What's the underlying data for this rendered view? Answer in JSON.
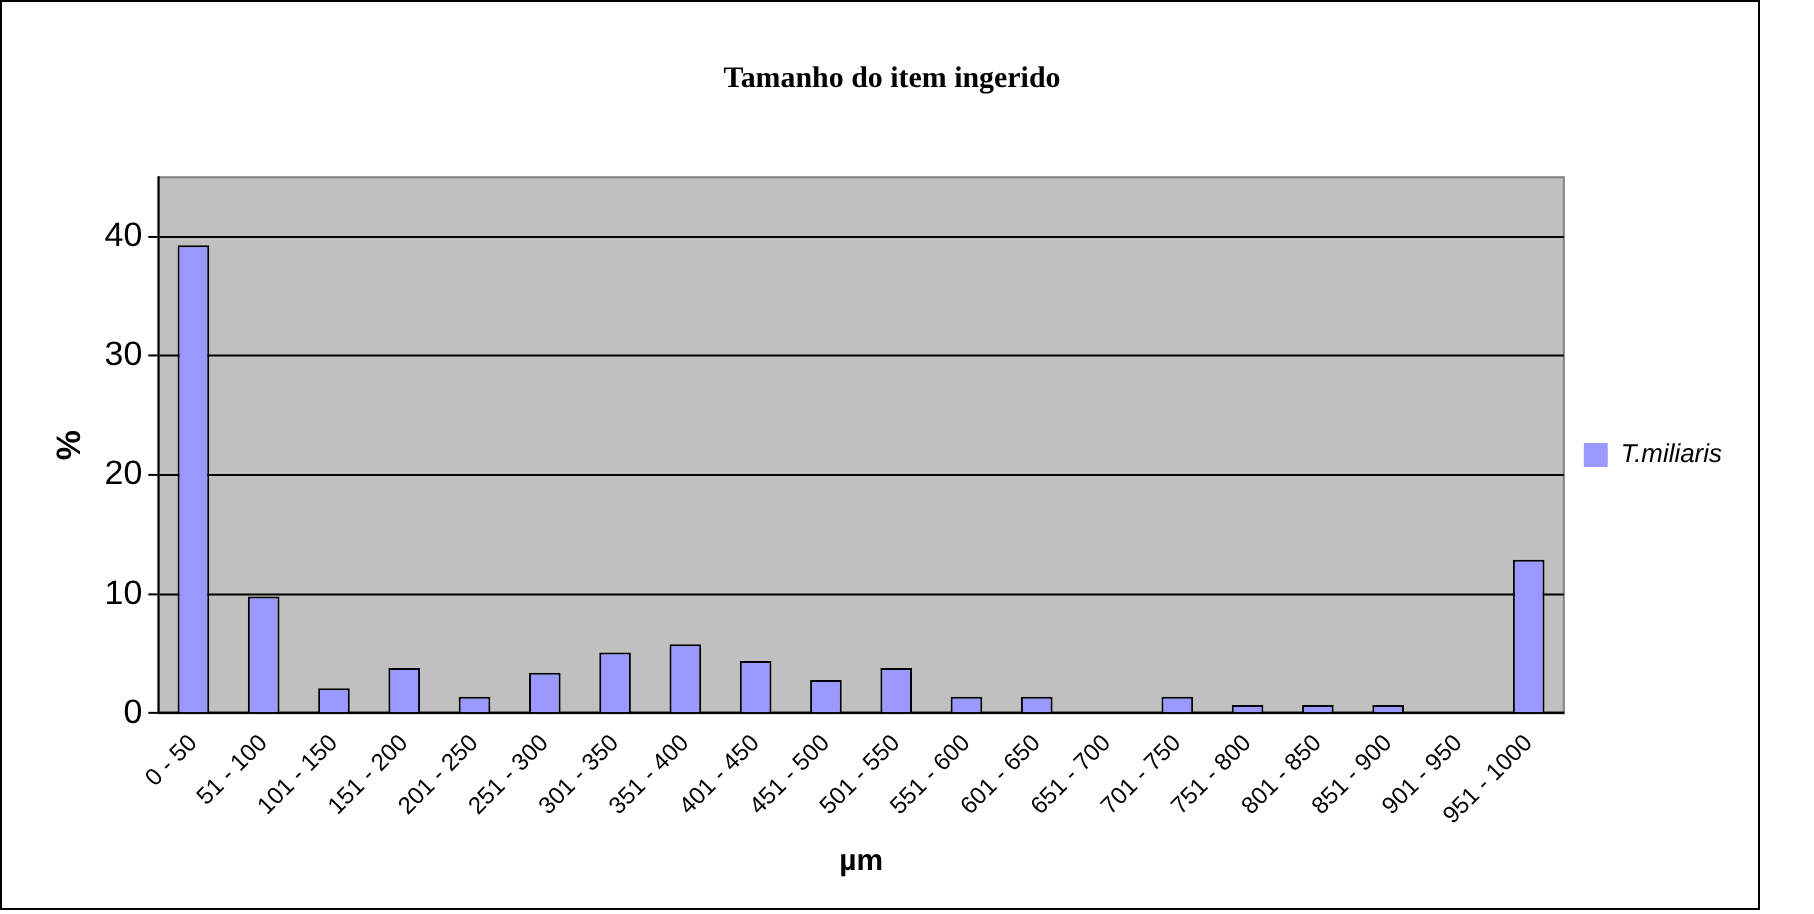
{
  "chart_data": {
    "type": "bar",
    "title": "Tamanho do item ingerido",
    "xlabel": "µm",
    "ylabel": "%",
    "categories": [
      "0 - 50",
      "51 - 100",
      "101 - 150",
      "151 - 200",
      "201 - 250",
      "251 - 300",
      "301 - 350",
      "351 - 400",
      "401 - 450",
      "451 - 500",
      "501 - 550",
      "551 - 600",
      "601 - 650",
      "651 - 700",
      "701 - 750",
      "751 - 800",
      "801 - 850",
      "851 - 900",
      "901 - 950",
      "951 - 1000"
    ],
    "series": [
      {
        "name": "T.miliaris",
        "color": "#9999ff",
        "values": [
          39.3,
          9.8,
          2.1,
          3.8,
          1.4,
          3.4,
          5.1,
          5.8,
          4.4,
          2.8,
          3.8,
          1.4,
          1.4,
          0,
          1.4,
          0.7,
          0.7,
          0.7,
          0,
          12.9
        ]
      }
    ],
    "ylim": [
      0,
      45
    ],
    "yticks": [
      0,
      10,
      20,
      30,
      40
    ],
    "grid": "y",
    "legend": "right"
  }
}
